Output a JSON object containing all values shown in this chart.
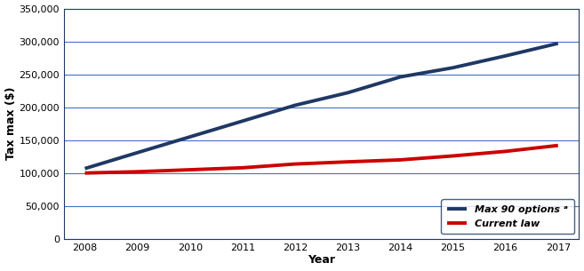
{
  "years": [
    2008,
    2009,
    2010,
    2011,
    2012,
    2013,
    2014,
    2015,
    2016,
    2017
  ],
  "max90_values": [
    106800,
    131000,
    155000,
    179000,
    203000,
    222000,
    246000,
    260000,
    278000,
    297000
  ],
  "current_law_values": [
    100000,
    102000,
    105000,
    108000,
    113700,
    117000,
    120000,
    126000,
    132900,
    141900
  ],
  "line1_color": "#1f3864",
  "line2_color": "#cc0000",
  "line1_label": "Max 90 options ᵃ",
  "line2_label": "Current law",
  "ylabel": "Tax max ($)",
  "xlabel": "Year",
  "ylim": [
    0,
    350000
  ],
  "yticks": [
    0,
    50000,
    100000,
    150000,
    200000,
    250000,
    300000,
    350000
  ],
  "xlim": [
    2007.6,
    2017.4
  ],
  "xticks": [
    2008,
    2009,
    2010,
    2011,
    2012,
    2013,
    2014,
    2015,
    2016,
    2017
  ],
  "grid_color": "#4472c4",
  "background_color": "#ffffff",
  "line_width": 2.8,
  "legend_fontsize": 8,
  "axis_label_fontsize": 9,
  "tick_fontsize": 8,
  "spine_color": "#1f3864"
}
